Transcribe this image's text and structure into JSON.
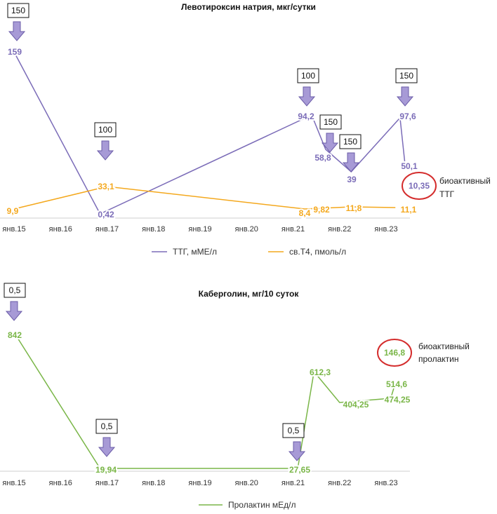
{
  "colors": {
    "purple": "#7b6cb8",
    "orange": "#f4a81d",
    "green": "#7ab648",
    "arrow_fill": "#a79ad6",
    "arrow_stroke": "#6b5ca8",
    "circle": "#d42c2c"
  },
  "chart_data": [
    {
      "type": "line",
      "title": "Левотироксин натрия, мкг/сутки",
      "categories": [
        "янв.15",
        "янв.16",
        "янв.17",
        "янв.18",
        "янв.19",
        "янв.20",
        "янв.21",
        "янв.22",
        "янв.23"
      ],
      "series": [
        {
          "name": "ТТГ, мМЕ/л",
          "color": "purple",
          "points": [
            {
              "x": 0.0,
              "y": 159,
              "label": "159"
            },
            {
              "x": 1.85,
              "y": 0.42,
              "label": "0,42"
            },
            {
              "x": 6.4,
              "y": 94.2,
              "label": "94,2"
            },
            {
              "x": 6.7,
              "y": 58.8,
              "label": "58,8"
            },
            {
              "x": 7.25,
              "y": 39,
              "label": "39"
            },
            {
              "x": 8.3,
              "y": 97.6,
              "label": "97,6"
            },
            {
              "x": 8.4,
              "y": 50.1,
              "label": "50,1"
            }
          ]
        },
        {
          "name": "св.Т4, пмоль/л",
          "color": "orange",
          "points": [
            {
              "x": 0.0,
              "y": 9.9,
              "label": "9,9"
            },
            {
              "x": 2.0,
              "y": 33.1,
              "label": "33,1"
            },
            {
              "x": 6.25,
              "y": 8.4,
              "label": "8,4"
            },
            {
              "x": 6.6,
              "y": 9.82,
              "label": "9,82"
            },
            {
              "x": 7.25,
              "y": 11.8,
              "label": "11,8"
            },
            {
              "x": 8.2,
              "y": 11.1,
              "label": "11,1"
            }
          ]
        }
      ],
      "doses": [
        {
          "x": 0.0,
          "label": "150"
        },
        {
          "x": 2.0,
          "label": "100"
        },
        {
          "x": 6.4,
          "label": "100"
        },
        {
          "x": 6.85,
          "label": "150"
        },
        {
          "x": 7.25,
          "label": "150"
        },
        {
          "x": 8.4,
          "label": "150"
        }
      ],
      "bioactive": {
        "value": "10,35",
        "text_lines": [
          "биоактивный",
          "ТТГ"
        ]
      }
    },
    {
      "type": "line",
      "title": "Каберголин, мг/10 суток",
      "categories": [
        "янв.15",
        "янв.16",
        "янв.17",
        "янв.18",
        "янв.19",
        "янв.20",
        "янв.21",
        "янв.22",
        "янв.23"
      ],
      "series": [
        {
          "name": "Пролактин мЕд/л",
          "color": "green",
          "points": [
            {
              "x": 0.0,
              "y": 842,
              "label": "842"
            },
            {
              "x": 1.85,
              "y": 19.94,
              "label": "19,94"
            },
            {
              "x": 6.1,
              "y": 27.65,
              "label": "27,65"
            },
            {
              "x": 6.45,
              "y": 612.3,
              "label": "612,3"
            },
            {
              "x": 7.0,
              "y": 404.25,
              "label": "404,25"
            },
            {
              "x": 8.1,
              "y": 474.25,
              "label": "474,25"
            },
            {
              "x": 8.2,
              "y": 514.6,
              "label": "514,6"
            }
          ]
        }
      ],
      "doses": [
        {
          "x": 0.0,
          "label": "0,5"
        },
        {
          "x": 2.0,
          "label": "0,5"
        },
        {
          "x": 6.05,
          "label": "0,5"
        }
      ],
      "bioactive": {
        "value": "146,8",
        "text_lines": [
          "биоактивный",
          "пролактин"
        ]
      }
    }
  ]
}
